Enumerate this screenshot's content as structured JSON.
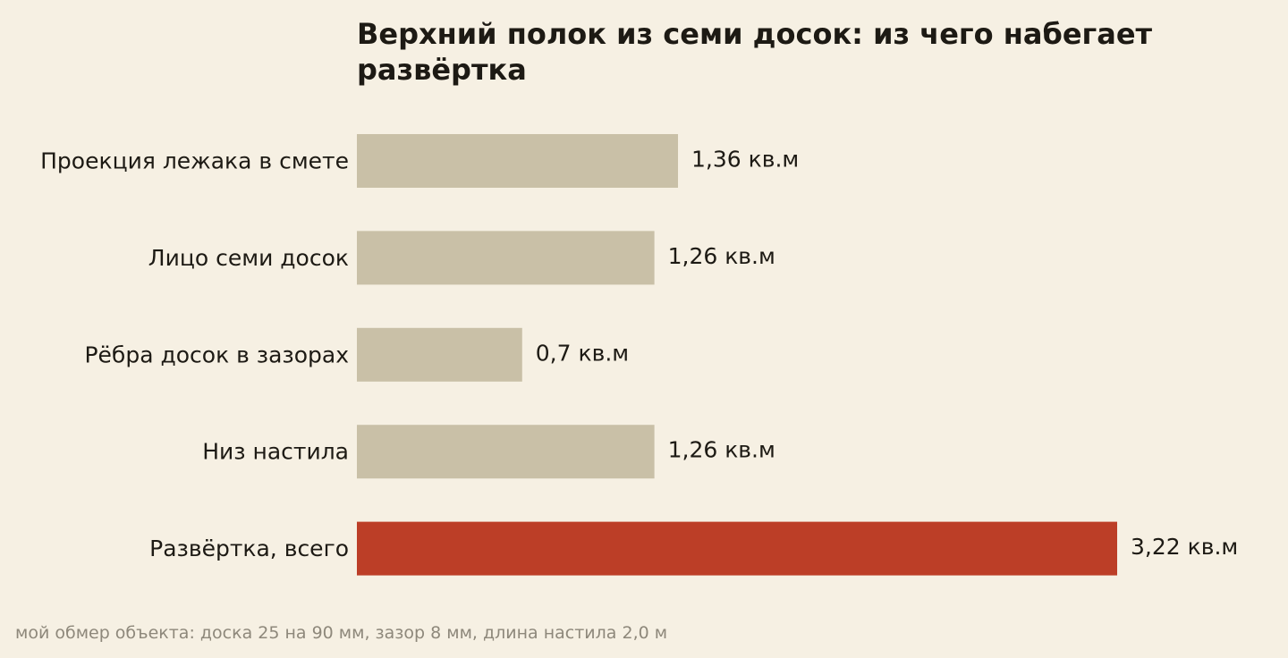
{
  "chart_data": {
    "type": "bar",
    "orientation": "horizontal",
    "title": "Верхний полок из семи досок: из чего набегает развёртка",
    "categories": [
      "Проекция лежака в смете",
      "Лицо семи досок",
      "Рёбра досок в зазорах",
      "Низ настила",
      "Развёртка, всего"
    ],
    "values": [
      1.36,
      1.26,
      0.7,
      1.26,
      3.22
    ],
    "value_labels": [
      "1,36 кв.м",
      "1,26 кв.м",
      "0,7 кв.м",
      "1,26 кв.м",
      "3,22 кв.м"
    ],
    "unit": "кв.м",
    "xlim": [
      0,
      3.22
    ],
    "grid": false,
    "legend": "none",
    "highlight_index": 4,
    "colors": {
      "bar": "#c9c0a7",
      "highlight": "#bc3e27",
      "text": "#1d1a14",
      "background": "#f6f0e3"
    }
  },
  "footnote": "мой обмер объекта: доска 25 на 90 мм, зазор 8 мм, длина настила 2,0 м"
}
